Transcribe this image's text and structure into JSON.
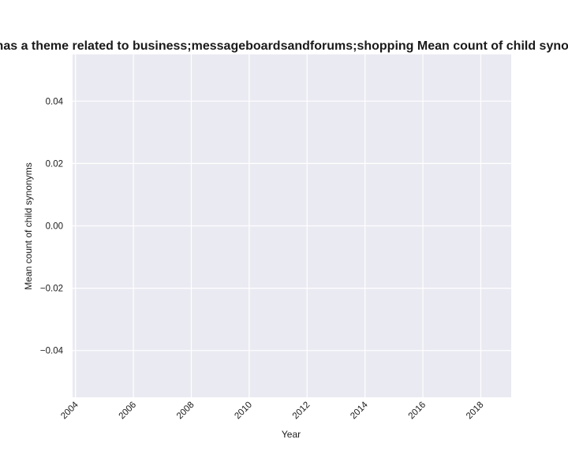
{
  "chart_data": {
    "type": "line",
    "title": "Trend in articles with 'Economy' as a topic where hyperpartisan is True and the domain type is foreign and the website is in Belgium and the topic of the website includes the topic of the website has a theme related to business;messageboardsandforums;shopping Mean count of child synonyms in presence of climate change",
    "xlabel": "Year",
    "ylabel": "Mean count of child synonyms",
    "xlim": [
      2003.9,
      2019.05
    ],
    "ylim": [
      -0.055,
      0.055
    ],
    "x_ticks": [
      "2004",
      "2006",
      "2008",
      "2010",
      "2012",
      "2014",
      "2016",
      "2018"
    ],
    "y_ticks": [
      "0.04",
      "0.02",
      "0.00",
      "−0.02",
      "−0.04"
    ],
    "x_tick_values": [
      2004,
      2006,
      2008,
      2010,
      2012,
      2014,
      2016,
      2018
    ],
    "y_tick_values": [
      0.04,
      0.02,
      0.0,
      -0.02,
      -0.04
    ],
    "series": [],
    "grid": true,
    "colors": {
      "background": "#eaeaf2",
      "grid": "#ffffff",
      "text": "#1a1a1a"
    }
  }
}
